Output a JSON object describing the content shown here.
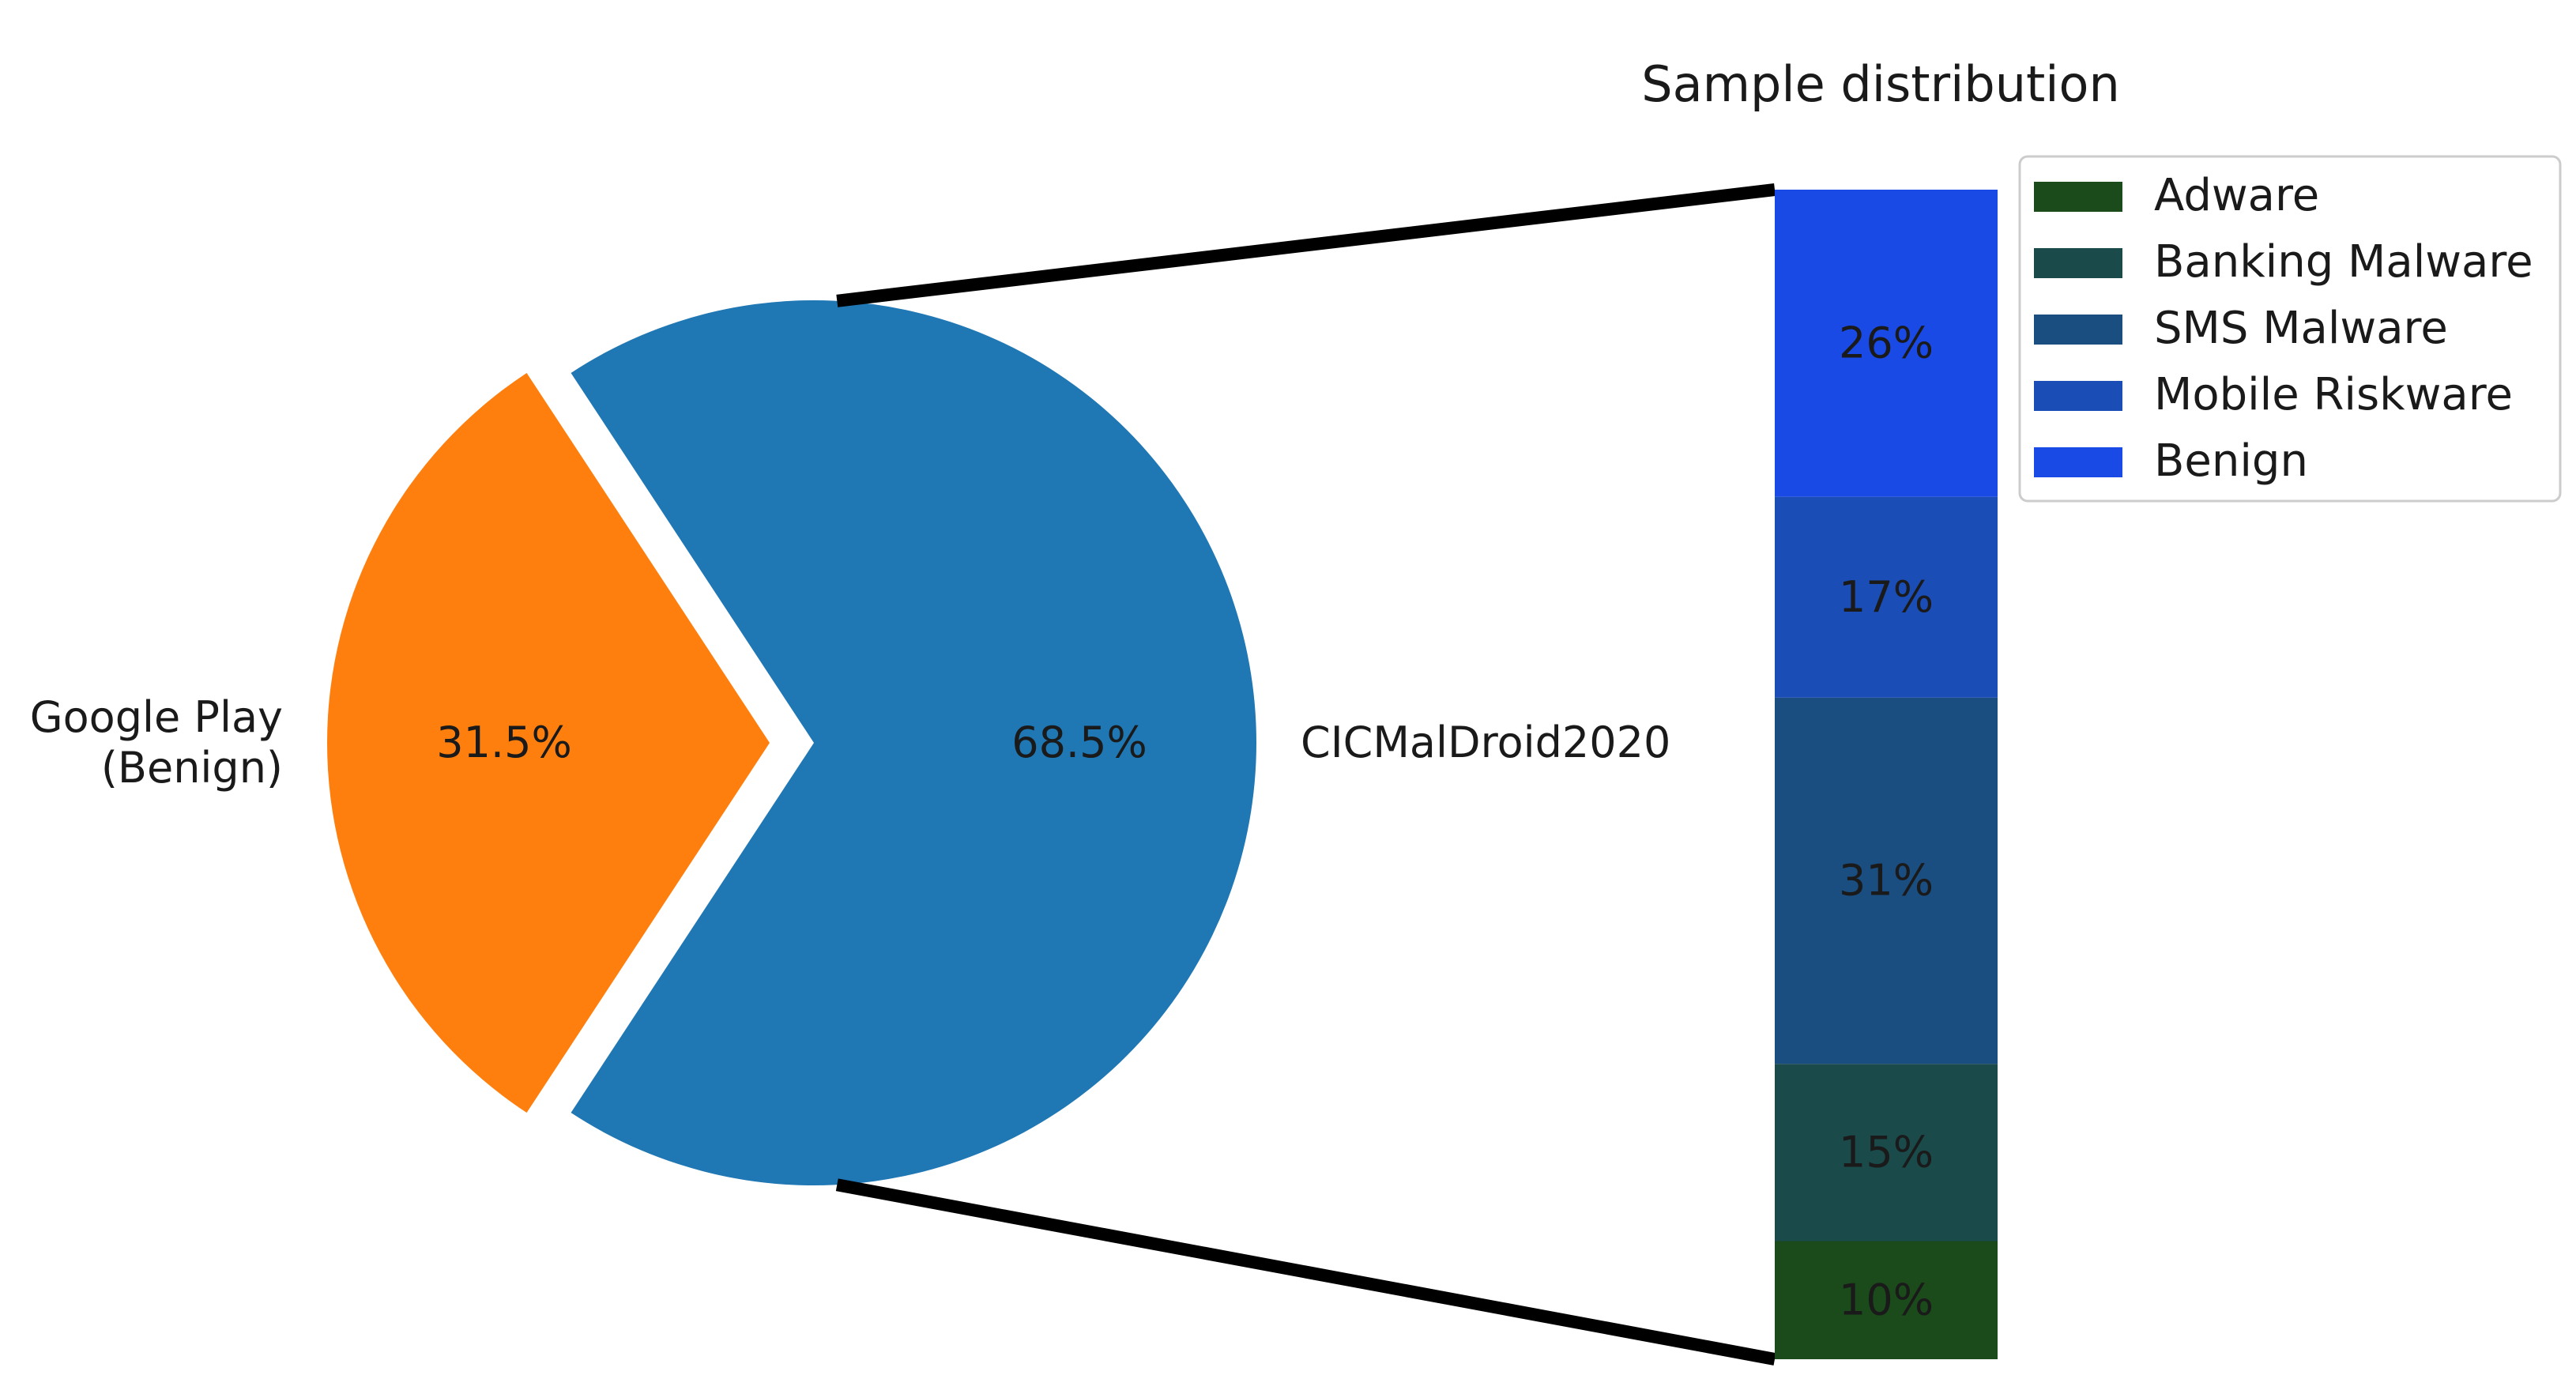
{
  "chart_data": [
    {
      "type": "pie",
      "categories": [
        "Google Play\n(Benign)",
        "CICMalDroid2020"
      ],
      "values": [
        31.5,
        68.5
      ],
      "value_labels": [
        "31.5%",
        "68.5%"
      ],
      "colors": [
        "#ff7f0e",
        "#1f77b4"
      ],
      "exploded": [
        "Google Play\n(Benign)"
      ]
    },
    {
      "type": "bar",
      "stacked": true,
      "title": "Sample distribution",
      "categories": [
        "Adware",
        "Banking Malware",
        "SMS Malware",
        "Mobile Riskware",
        "Benign"
      ],
      "values": [
        10,
        15,
        31,
        17,
        26
      ],
      "value_labels": [
        "10%",
        "15%",
        "31%",
        "17%",
        "26%"
      ],
      "colors": [
        "#1b4a1b",
        "#1a4a4a",
        "#1a4d80",
        "#1a4db5",
        "#1a4ae6"
      ],
      "legend": {
        "entries": [
          "Adware",
          "Banking Malware",
          "SMS Malware",
          "Mobile Riskware",
          "Benign"
        ],
        "placement": "right"
      }
    }
  ]
}
